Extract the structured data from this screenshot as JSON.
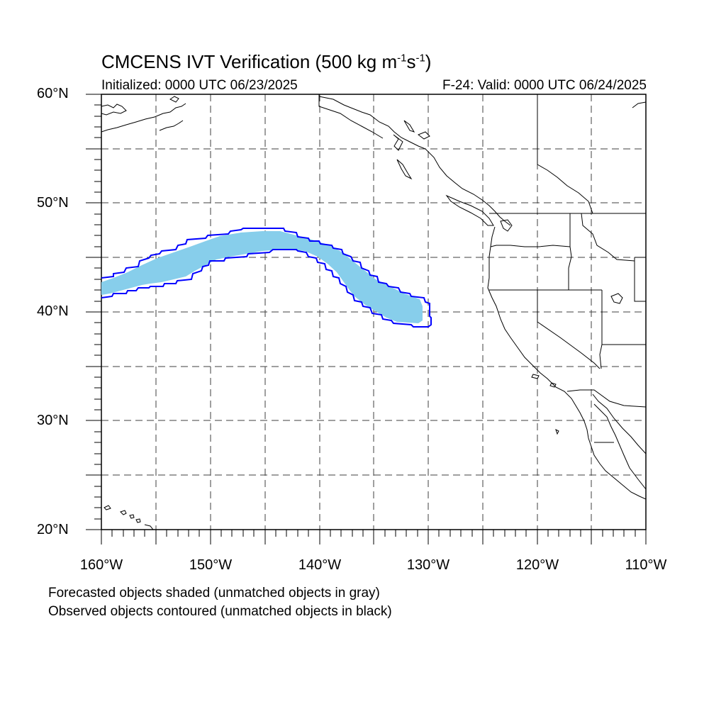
{
  "title": {
    "main": "CMCENS IVT Verification (500 kg m",
    "exp1": "-1",
    "mid": "s",
    "exp2": "-1",
    "end": ")"
  },
  "initialized": "Initialized: 0000 UTC 06/23/2025",
  "valid": "F-24: Valid: 0000 UTC 06/24/2025",
  "map": {
    "projection": "cylindrical equidistant",
    "lon_range": [
      -160,
      -110
    ],
    "lat_range": [
      20,
      60
    ],
    "grid": "dashed, every 5 degrees",
    "coastline_color": "#000000",
    "grid_color": "#000000"
  },
  "lat_labels": [
    "60°N",
    "50°N",
    "40°N",
    "30°N",
    "20°N"
  ],
  "lon_labels": [
    "160°W",
    "150°W",
    "140°W",
    "130°W",
    "120°W",
    "110°W"
  ],
  "forecast_object": {
    "label": "Forecasted objects shaded",
    "color": "#87ceeb",
    "matched": true
  },
  "observed_object": {
    "label": "Observed objects contoured",
    "color": "#0000ff",
    "matched": true
  },
  "notes": [
    "Forecasted objects shaded (unmatched objects in gray)",
    "Observed objects contoured (unmatched objects in black)"
  ]
}
